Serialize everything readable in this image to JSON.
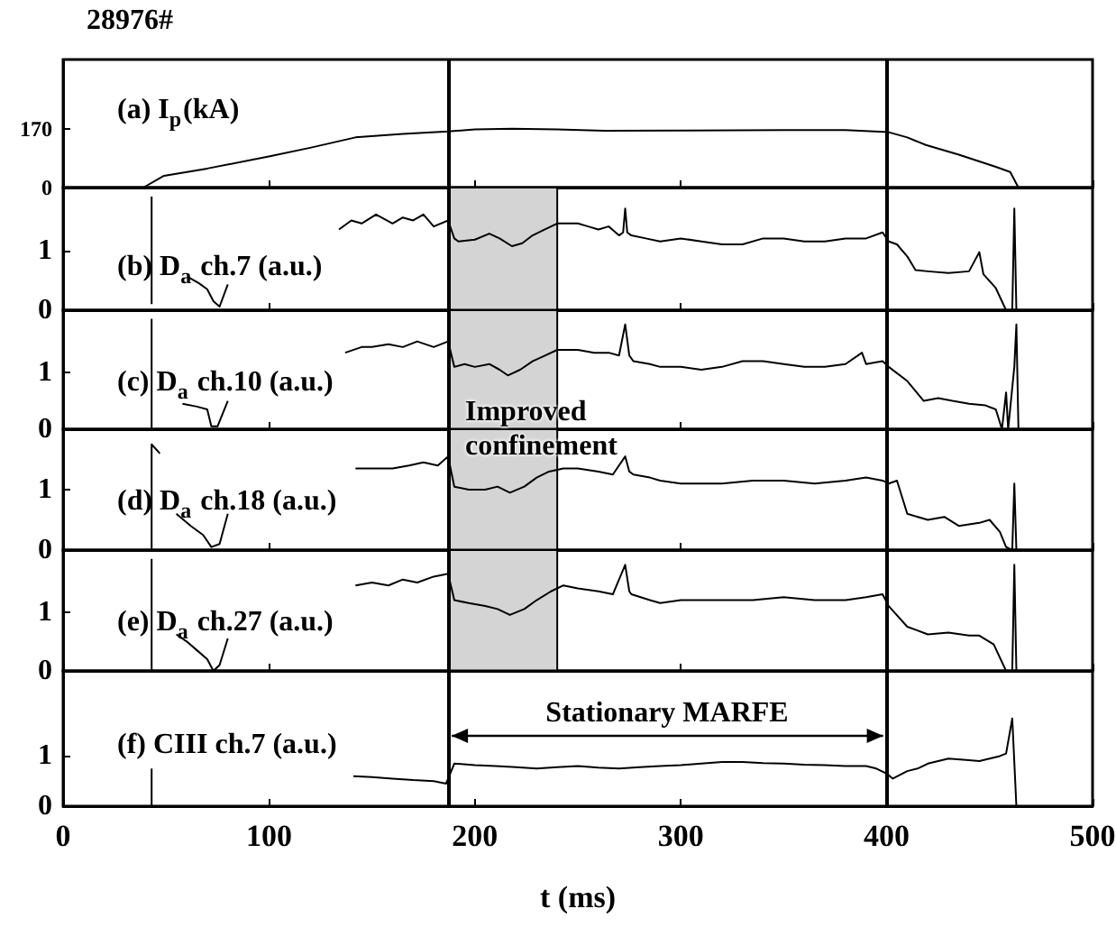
{
  "chart_data": [
    {
      "type": "line",
      "title": "(a) I$_{p}$(kA)",
      "annotations": [
        "28976#"
      ],
      "marker": "none",
      "tick_labels": "y",
      "xlim": [
        0,
        500
      ],
      "xticks": [
        0,
        100,
        200,
        300,
        400,
        500
      ],
      "ylim": [
        0,
        370
      ],
      "yticks": [
        0,
        170
      ],
      "x": [
        0,
        39,
        49,
        70,
        101,
        120,
        142,
        165,
        187,
        200,
        218,
        240,
        263,
        300,
        350,
        380,
        401,
        410,
        419,
        435,
        453,
        460,
        464,
        500
      ],
      "series": [
        {
          "color": "#000000",
          "values": [
            0,
            0,
            34,
            55,
            91,
            115,
            145,
            155,
            162,
            168,
            170,
            168,
            164,
            165,
            166,
            166,
            160,
            145,
            123,
            95,
            60,
            45,
            0,
            0
          ]
        }
      ],
      "ref_lines": [
        {
          "axis": "x",
          "value": 187
        },
        {
          "axis": "x",
          "value": 400
        }
      ]
    },
    {
      "type": "line",
      "title": "(b) D$_{a}$ ch.7 (a.u.)",
      "marker": "none",
      "tick_labels": "y",
      "xlim": [
        0,
        500
      ],
      "xticks": [
        0,
        100,
        200,
        300,
        400,
        500
      ],
      "ylim": [
        0,
        2.05
      ],
      "yticks": [
        0,
        1
      ],
      "x": [
        43,
        43,
        44,
        61,
        66,
        70,
        73,
        76,
        80,
        81,
        134,
        140,
        145,
        152,
        160,
        165,
        170,
        175,
        180,
        187,
        190,
        192,
        200,
        207,
        212,
        218,
        223,
        228,
        234,
        240,
        250,
        255,
        260,
        265,
        270,
        272,
        273,
        274,
        276,
        283,
        290,
        300,
        310,
        320,
        330,
        340,
        350,
        360,
        370,
        380,
        390,
        398,
        401,
        405,
        410,
        414,
        420,
        430,
        440,
        445,
        447,
        453,
        458,
        461,
        462,
        463
      ],
      "series": [
        {
          "color": "#000000",
          "values": [
            0.1,
            1.9,
            null,
            0.55,
            0.45,
            0.35,
            0.15,
            0.06,
            0.43,
            null,
            1.35,
            1.5,
            1.45,
            1.6,
            1.45,
            1.55,
            1.5,
            1.6,
            1.4,
            1.5,
            1.2,
            1.15,
            1.18,
            1.28,
            1.2,
            1.07,
            1.12,
            1.25,
            1.35,
            1.45,
            1.45,
            1.4,
            1.35,
            1.4,
            1.25,
            1.3,
            1.7,
            1.3,
            1.25,
            1.2,
            1.15,
            1.2,
            1.15,
            1.1,
            1.1,
            1.2,
            1.2,
            1.15,
            1.15,
            1.2,
            1.2,
            1.3,
            1.15,
            1.1,
            0.9,
            0.67,
            0.65,
            0.62,
            0.65,
            0.97,
            0.6,
            0.37,
            0,
            0,
            1.7,
            0
          ]
        }
      ],
      "ref_lines": [
        {
          "axis": "x",
          "value": 187
        },
        {
          "axis": "x",
          "value": 400
        }
      ],
      "bands": [
        {
          "axis": "x",
          "from": 187,
          "to": 240,
          "color": "#d4d4d4"
        }
      ]
    },
    {
      "type": "line",
      "title": "(c) D$_{a}$ ch.10 (a.u.)",
      "annotations": [
        "Improved\nconfinement"
      ],
      "marker": "none",
      "tick_labels": "y",
      "xlim": [
        0,
        500
      ],
      "xticks": [
        0,
        100,
        200,
        300,
        400,
        500
      ],
      "ylim": [
        0,
        2.1
      ],
      "yticks": [
        0,
        1
      ],
      "x": [
        43,
        43,
        44,
        58,
        65,
        70,
        72,
        75,
        80,
        81,
        137,
        145,
        150,
        158,
        165,
        172,
        180,
        187,
        190,
        195,
        200,
        207,
        212,
        216,
        222,
        228,
        234,
        240,
        250,
        258,
        265,
        270,
        273,
        275,
        277,
        285,
        290,
        300,
        310,
        320,
        330,
        340,
        350,
        360,
        370,
        380,
        388,
        390,
        398,
        401,
        410,
        418,
        425,
        432,
        440,
        448,
        453,
        456,
        458,
        459,
        462,
        463,
        464
      ],
      "series": [
        {
          "color": "#000000",
          "values": [
            0,
            1.95,
            null,
            0.45,
            0.4,
            0.35,
            0.05,
            0.05,
            0.5,
            null,
            1.35,
            1.45,
            1.45,
            1.5,
            1.45,
            1.55,
            1.45,
            1.55,
            1.1,
            1.15,
            1.1,
            1.15,
            1.05,
            0.95,
            1.05,
            1.2,
            1.3,
            1.4,
            1.4,
            1.35,
            1.35,
            1.3,
            1.85,
            1.3,
            1.2,
            1.15,
            1.1,
            1.1,
            1.05,
            1.1,
            1.2,
            1.2,
            1.15,
            1.1,
            1.1,
            1.15,
            1.35,
            1.15,
            1.2,
            1.1,
            0.85,
            0.5,
            0.55,
            0.5,
            0.45,
            0.42,
            0.35,
            0,
            0.65,
            0,
            1.1,
            1.85,
            0
          ]
        }
      ],
      "ref_lines": [
        {
          "axis": "x",
          "value": 187
        },
        {
          "axis": "x",
          "value": 400
        }
      ],
      "bands": [
        {
          "axis": "x",
          "from": 187,
          "to": 240,
          "color": "#d4d4d4"
        }
      ]
    },
    {
      "type": "line",
      "title": "(d) D$_{a}$ ch.18 (a.u.)",
      "marker": "none",
      "tick_labels": "y",
      "xlim": [
        0,
        500
      ],
      "xticks": [
        0,
        100,
        200,
        300,
        400,
        500
      ],
      "ylim": [
        0,
        2
      ],
      "yticks": [
        0,
        1
      ],
      "x": [
        43,
        43,
        47,
        48,
        55,
        62,
        68,
        72,
        76,
        80,
        81,
        142,
        150,
        160,
        168,
        175,
        182,
        187,
        190,
        197,
        205,
        211,
        217,
        224,
        230,
        236,
        243,
        250,
        260,
        267,
        273,
        275,
        277,
        285,
        290,
        300,
        320,
        335,
        350,
        365,
        380,
        390,
        398,
        401,
        405,
        410,
        420,
        428,
        435,
        445,
        450,
        455,
        458,
        461,
        462,
        463
      ],
      "series": [
        {
          "color": "#000000",
          "values": [
            0,
            1.75,
            1.6,
            null,
            0.6,
            0.4,
            0.25,
            0.05,
            0.1,
            0.6,
            null,
            1.35,
            1.35,
            1.35,
            1.4,
            1.45,
            1.4,
            1.55,
            1.05,
            1.0,
            1.0,
            1.05,
            0.95,
            1.05,
            1.2,
            1.3,
            1.35,
            1.35,
            1.3,
            1.25,
            1.55,
            1.3,
            1.25,
            1.2,
            1.15,
            1.1,
            1.1,
            1.15,
            1.15,
            1.1,
            1.15,
            1.2,
            1.15,
            1.1,
            1.15,
            0.6,
            0.5,
            0.55,
            0.4,
            0.45,
            0.5,
            0.3,
            0.05,
            0,
            1.1,
            0
          ]
        }
      ],
      "ref_lines": [
        {
          "axis": "x",
          "value": 187
        },
        {
          "axis": "x",
          "value": 400
        }
      ],
      "bands": [
        {
          "axis": "x",
          "from": 187,
          "to": 240,
          "color": "#d4d4d4"
        }
      ]
    },
    {
      "type": "line",
      "title": "(e) D$_{a}$ ch.27 (a.u.)",
      "marker": "none",
      "tick_labels": "y",
      "xlim": [
        0,
        500
      ],
      "xticks": [
        0,
        100,
        200,
        300,
        400,
        500
      ],
      "ylim": [
        0,
        2.05
      ],
      "yticks": [
        0,
        1
      ],
      "x": [
        43,
        43,
        44,
        55,
        60,
        65,
        70,
        73,
        76,
        80,
        81,
        142,
        150,
        158,
        165,
        172,
        180,
        187,
        190,
        197,
        205,
        211,
        217,
        224,
        230,
        237,
        243,
        250,
        260,
        267,
        273,
        275,
        276,
        285,
        290,
        300,
        320,
        335,
        350,
        365,
        380,
        390,
        398,
        401,
        410,
        420,
        430,
        440,
        445,
        452,
        458,
        461,
        462,
        463
      ],
      "series": [
        {
          "color": "#000000",
          "values": [
            0,
            1.9,
            null,
            0.62,
            0.5,
            0.35,
            0.2,
            0,
            0.1,
            0.55,
            null,
            1.45,
            1.5,
            1.45,
            1.55,
            1.5,
            1.6,
            1.65,
            1.2,
            1.15,
            1.1,
            1.05,
            0.95,
            1.05,
            1.2,
            1.35,
            1.45,
            1.4,
            1.35,
            1.3,
            1.8,
            1.35,
            1.3,
            1.2,
            1.15,
            1.2,
            1.2,
            1.2,
            1.25,
            1.2,
            1.2,
            1.25,
            1.3,
            1.1,
            0.75,
            0.62,
            0.65,
            0.6,
            0.6,
            0.45,
            0,
            0,
            1.8,
            0
          ]
        }
      ],
      "ref_lines": [
        {
          "axis": "x",
          "value": 187
        },
        {
          "axis": "x",
          "value": 400
        }
      ],
      "bands": [
        {
          "axis": "x",
          "from": 187,
          "to": 240,
          "color": "#d4d4d4"
        }
      ]
    },
    {
      "type": "line",
      "title": "(f) CIII ch.7 (a.u.)",
      "xlabel": "t (ms)",
      "annotations": [
        "Stationary MARFE"
      ],
      "marker": "none",
      "xlim": [
        0,
        500
      ],
      "xticks": [
        0,
        100,
        200,
        300,
        400,
        500
      ],
      "ylim": [
        0,
        2.7
      ],
      "yticks": [
        0,
        1
      ],
      "x": [
        43,
        43,
        44,
        141,
        150,
        160,
        170,
        180,
        186,
        190,
        200,
        210,
        220,
        230,
        240,
        250,
        260,
        270,
        280,
        290,
        300,
        310,
        320,
        330,
        340,
        350,
        360,
        370,
        380,
        390,
        395,
        400,
        403,
        410,
        415,
        420,
        430,
        440,
        445,
        450,
        455,
        458,
        461,
        463,
        500
      ],
      "series": [
        {
          "color": "#000000",
          "values": [
            0,
            0.75,
            null,
            0.6,
            0.58,
            0.55,
            0.52,
            0.5,
            0.45,
            0.85,
            0.82,
            0.8,
            0.78,
            0.75,
            0.78,
            0.8,
            0.77,
            0.75,
            0.78,
            0.8,
            0.82,
            0.85,
            0.88,
            0.88,
            0.86,
            0.85,
            0.83,
            0.82,
            0.8,
            0.8,
            0.75,
            0.65,
            0.55,
            0.7,
            0.75,
            0.85,
            0.95,
            0.92,
            0.9,
            0.95,
            1.0,
            1.05,
            1.75,
            0,
            0
          ]
        }
      ],
      "ref_lines": [
        {
          "axis": "x",
          "value": 187
        },
        {
          "axis": "x",
          "value": 400
        }
      ]
    }
  ]
}
